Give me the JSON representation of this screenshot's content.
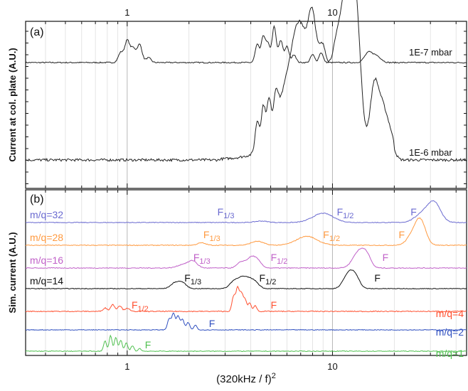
{
  "chart_data": [
    {
      "type": "line",
      "panel_label": "(a)",
      "ylabel": "Current at col. plate (A.U.)",
      "x_scale": "log",
      "xlim": [
        0.32,
        45
      ],
      "top_ticks": [
        {
          "value": 1,
          "label": "1"
        },
        {
          "value": 10,
          "label": "10"
        }
      ],
      "series": [
        {
          "name": "1E-7 mbar",
          "color": "#222222",
          "baseline": 0.0,
          "peaks": [
            {
              "x": 0.93,
              "h": 0.25,
              "w": 0.012
            },
            {
              "x": 1.0,
              "h": 0.55,
              "w": 0.012
            },
            {
              "x": 1.07,
              "h": 0.35,
              "w": 0.012
            },
            {
              "x": 1.15,
              "h": 0.45,
              "w": 0.012
            },
            {
              "x": 1.27,
              "h": 0.12,
              "w": 0.012
            },
            {
              "x": 4.3,
              "h": 0.45,
              "w": 0.01
            },
            {
              "x": 4.6,
              "h": 0.65,
              "w": 0.01
            },
            {
              "x": 4.85,
              "h": 0.45,
              "w": 0.01
            },
            {
              "x": 5.2,
              "h": 0.9,
              "w": 0.01
            },
            {
              "x": 5.6,
              "h": 0.55,
              "w": 0.01
            },
            {
              "x": 6.0,
              "h": 0.4,
              "w": 0.01
            },
            {
              "x": 6.5,
              "h": 0.2,
              "w": 0.01
            },
            {
              "x": 8.0,
              "h": 0.2,
              "w": 0.01
            },
            {
              "x": 8.8,
              "h": 0.25,
              "w": 0.01
            },
            {
              "x": 15.0,
              "h": 0.25,
              "w": 0.02
            },
            {
              "x": 16.5,
              "h": 0.15,
              "w": 0.02
            }
          ]
        },
        {
          "name": "1E-6 mbar",
          "color": "#222222",
          "baseline": 0.0,
          "peaks": [
            {
              "x": 4.3,
              "h": 0.35,
              "w": 0.01
            },
            {
              "x": 4.6,
              "h": 0.45,
              "w": 0.01
            },
            {
              "x": 4.9,
              "h": 0.4,
              "w": 0.01
            },
            {
              "x": 5.3,
              "h": 0.3,
              "w": 0.01
            },
            {
              "x": 6.0,
              "h": 0.6,
              "w": 0.06
            },
            {
              "x": 7.0,
              "h": 1.05,
              "w": 0.04
            },
            {
              "x": 8.0,
              "h": 1.0,
              "w": 0.02
            },
            {
              "x": 8.9,
              "h": 0.7,
              "w": 0.02
            },
            {
              "x": 10.8,
              "h": 1.2,
              "w": 0.05
            },
            {
              "x": 12.3,
              "h": 1.3,
              "w": 0.03
            },
            {
              "x": 13.2,
              "h": 0.6,
              "w": 0.02
            },
            {
              "x": 16.0,
              "h": 0.75,
              "w": 0.02
            },
            {
              "x": 17.5,
              "h": 0.45,
              "w": 0.02
            },
            {
              "x": 19.0,
              "h": 0.25,
              "w": 0.02
            }
          ]
        }
      ]
    },
    {
      "type": "line",
      "panel_label": "(b)",
      "ylabel": "Sim. current (A.U.)",
      "xlabel": "(320kHz / f)",
      "xlabel_sup": "2",
      "x_scale": "log",
      "xlim": [
        0.32,
        45
      ],
      "bottom_ticks": [
        {
          "value": 1,
          "label": "1"
        },
        {
          "value": 10,
          "label": "10"
        }
      ],
      "series": [
        {
          "name": "m/q=32",
          "color": "#6a6ad0",
          "peaks": [
            {
              "x": 4.5,
              "h": 0.08,
              "w": 0.03
            },
            {
              "x": 9.0,
              "h": 0.5,
              "w": 0.05
            },
            {
              "x": 28.0,
              "h": 0.55,
              "w": 0.04
            },
            {
              "x": 31.5,
              "h": 0.9,
              "w": 0.03
            }
          ],
          "fractions": [
            {
              "x": 2.75,
              "text": "F",
              "sub": "1/3"
            },
            {
              "x": 10.5,
              "text": "F",
              "sub": "1/2"
            },
            {
              "x": 24.0,
              "text": "F",
              "sub": ""
            }
          ]
        },
        {
          "name": "m/q=28",
          "color": "#ff9a40",
          "peaks": [
            {
              "x": 2.3,
              "h": 0.12,
              "w": 0.02
            },
            {
              "x": 4.3,
              "h": 0.2,
              "w": 0.03
            },
            {
              "x": 7.5,
              "h": 0.45,
              "w": 0.05
            },
            {
              "x": 25.0,
              "h": 0.6,
              "w": 0.03
            },
            {
              "x": 27.0,
              "h": 1.0,
              "w": 0.025
            }
          ],
          "fractions": [
            {
              "x": 2.35,
              "text": "F",
              "sub": "1/3"
            },
            {
              "x": 9.0,
              "text": "F",
              "sub": "1/2"
            },
            {
              "x": 21.0,
              "text": "F",
              "sub": ""
            }
          ]
        },
        {
          "name": "m/q=16",
          "color": "#c060c8",
          "peaks": [
            {
              "x": 1.9,
              "h": 0.2,
              "w": 0.03
            },
            {
              "x": 2.1,
              "h": 0.3,
              "w": 0.02
            },
            {
              "x": 3.6,
              "h": 0.3,
              "w": 0.02
            },
            {
              "x": 4.0,
              "h": 0.45,
              "w": 0.02
            },
            {
              "x": 4.3,
              "h": 0.35,
              "w": 0.02
            },
            {
              "x": 13.5,
              "h": 0.85,
              "w": 0.03
            },
            {
              "x": 14.7,
              "h": 0.45,
              "w": 0.02
            }
          ],
          "fractions": [
            {
              "x": 2.1,
              "text": "F",
              "sub": "1/3"
            },
            {
              "x": 5.0,
              "text": "F",
              "sub": "1/2"
            },
            {
              "x": 17.5,
              "text": "F",
              "sub": ""
            }
          ]
        },
        {
          "name": "m/q=14",
          "color": "#111111",
          "peaks": [
            {
              "x": 1.7,
              "h": 0.3,
              "w": 0.02
            },
            {
              "x": 1.85,
              "h": 0.35,
              "w": 0.02
            },
            {
              "x": 3.3,
              "h": 0.4,
              "w": 0.02
            },
            {
              "x": 3.6,
              "h": 0.55,
              "w": 0.02
            },
            {
              "x": 3.9,
              "h": 0.45,
              "w": 0.02
            },
            {
              "x": 4.2,
              "h": 0.35,
              "w": 0.02
            },
            {
              "x": 12.0,
              "h": 0.9,
              "w": 0.025
            },
            {
              "x": 13.0,
              "h": 0.55,
              "w": 0.02
            }
          ],
          "fractions": [
            {
              "x": 1.9,
              "text": "F",
              "sub": "1/3"
            },
            {
              "x": 4.4,
              "text": "F",
              "sub": "1/2"
            },
            {
              "x": 16.0,
              "text": "F",
              "sub": ""
            }
          ]
        },
        {
          "name": "m/q=4",
          "color": "#ff5030",
          "peaks": [
            {
              "x": 0.78,
              "h": 0.15,
              "w": 0.01
            },
            {
              "x": 0.85,
              "h": 0.3,
              "w": 0.01
            },
            {
              "x": 0.92,
              "h": 0.25,
              "w": 0.01
            },
            {
              "x": 1.0,
              "h": 0.15,
              "w": 0.01
            },
            {
              "x": 3.3,
              "h": 0.65,
              "w": 0.008
            },
            {
              "x": 3.45,
              "h": 1.0,
              "w": 0.008
            },
            {
              "x": 3.6,
              "h": 0.75,
              "w": 0.008
            },
            {
              "x": 3.75,
              "h": 0.5,
              "w": 0.008
            },
            {
              "x": 3.95,
              "h": 0.35,
              "w": 0.008
            },
            {
              "x": 4.2,
              "h": 0.25,
              "w": 0.008
            }
          ],
          "fractions": [
            {
              "x": 1.05,
              "text": "F",
              "sub": "1/2"
            },
            {
              "x": 5.0,
              "text": "F",
              "sub": ""
            }
          ]
        },
        {
          "name": "m/q=2",
          "color": "#3050c0",
          "peaks": [
            {
              "x": 1.6,
              "h": 0.6,
              "w": 0.008
            },
            {
              "x": 1.68,
              "h": 0.9,
              "w": 0.008
            },
            {
              "x": 1.77,
              "h": 0.75,
              "w": 0.008
            },
            {
              "x": 1.86,
              "h": 0.55,
              "w": 0.008
            },
            {
              "x": 1.98,
              "h": 0.4,
              "w": 0.008
            },
            {
              "x": 2.15,
              "h": 0.25,
              "w": 0.008
            }
          ],
          "fractions": [
            {
              "x": 2.5,
              "text": "F",
              "sub": ""
            }
          ]
        },
        {
          "name": "m/q=1",
          "color": "#50c050",
          "peaks": [
            {
              "x": 0.78,
              "h": 0.55,
              "w": 0.007
            },
            {
              "x": 0.83,
              "h": 0.85,
              "w": 0.007
            },
            {
              "x": 0.88,
              "h": 0.75,
              "w": 0.007
            },
            {
              "x": 0.93,
              "h": 0.6,
              "w": 0.007
            },
            {
              "x": 0.99,
              "h": 0.45,
              "w": 0.007
            },
            {
              "x": 1.06,
              "h": 0.3,
              "w": 0.007
            },
            {
              "x": 1.15,
              "h": 0.15,
              "w": 0.007
            }
          ],
          "fractions": [
            {
              "x": 1.22,
              "text": "F",
              "sub": ""
            }
          ]
        }
      ]
    }
  ]
}
